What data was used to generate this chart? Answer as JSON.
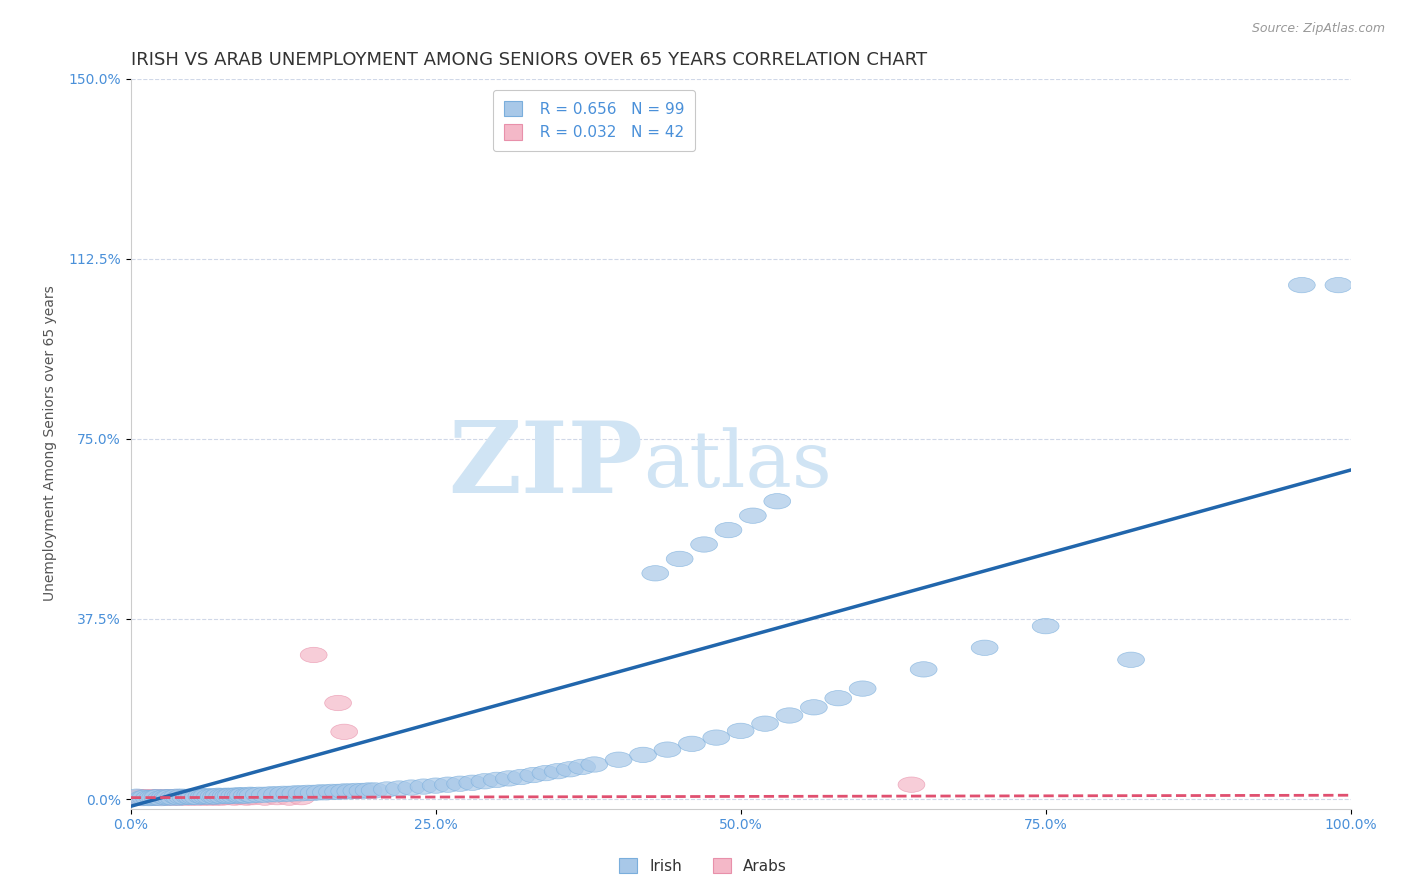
{
  "title": "IRISH VS ARAB UNEMPLOYMENT AMONG SENIORS OVER 65 YEARS CORRELATION CHART",
  "source": "Source: ZipAtlas.com",
  "ylabel": "Unemployment Among Seniors over 65 years",
  "xlim": [
    0.0,
    1.0
  ],
  "ylim": [
    -0.02,
    1.5
  ],
  "xticks": [
    0.0,
    0.25,
    0.5,
    0.75,
    1.0
  ],
  "xticklabels": [
    "0.0%",
    "25.0%",
    "50.0%",
    "75.0%",
    "100.0%"
  ],
  "yticks": [
    0.0,
    0.375,
    0.75,
    1.125,
    1.5
  ],
  "yticklabels": [
    "0.0%",
    "37.5%",
    "75.0%",
    "112.5%",
    "150.0%"
  ],
  "irish_color": "#a8c8e8",
  "arab_color": "#f4b8c8",
  "irish_edge_color": "#7aaedc",
  "arab_edge_color": "#e890aa",
  "irish_line_color": "#2166ac",
  "arab_line_color": "#e05070",
  "irish_R": 0.656,
  "irish_N": 99,
  "arab_R": 0.032,
  "arab_N": 42,
  "grid_color": "#d0d8e8",
  "background_color": "#ffffff",
  "title_fontsize": 13,
  "axis_label_fontsize": 10,
  "tick_label_color": "#4a90d9",
  "legend_fontsize": 11,
  "watermark_color": "#d0e4f4",
  "irish_x": [
    0.005,
    0.01,
    0.012,
    0.015,
    0.018,
    0.02,
    0.022,
    0.025,
    0.028,
    0.03,
    0.032,
    0.035,
    0.038,
    0.04,
    0.042,
    0.045,
    0.048,
    0.05,
    0.052,
    0.055,
    0.058,
    0.06,
    0.062,
    0.065,
    0.068,
    0.07,
    0.072,
    0.075,
    0.078,
    0.08,
    0.082,
    0.085,
    0.088,
    0.09,
    0.092,
    0.095,
    0.098,
    0.1,
    0.105,
    0.11,
    0.115,
    0.12,
    0.125,
    0.13,
    0.135,
    0.14,
    0.145,
    0.15,
    0.155,
    0.16,
    0.165,
    0.17,
    0.175,
    0.18,
    0.185,
    0.19,
    0.195,
    0.2,
    0.21,
    0.22,
    0.23,
    0.24,
    0.25,
    0.26,
    0.27,
    0.28,
    0.29,
    0.3,
    0.31,
    0.32,
    0.33,
    0.34,
    0.35,
    0.36,
    0.37,
    0.38,
    0.4,
    0.42,
    0.44,
    0.46,
    0.48,
    0.5,
    0.52,
    0.54,
    0.56,
    0.58,
    0.6,
    0.65,
    0.7,
    0.75,
    0.43,
    0.45,
    0.47,
    0.49,
    0.51,
    0.53,
    0.82,
    0.96,
    0.99
  ],
  "irish_y": [
    0.005,
    0.002,
    0.003,
    0.002,
    0.003,
    0.003,
    0.004,
    0.002,
    0.004,
    0.003,
    0.004,
    0.003,
    0.005,
    0.003,
    0.005,
    0.004,
    0.005,
    0.004,
    0.005,
    0.004,
    0.006,
    0.005,
    0.006,
    0.005,
    0.006,
    0.005,
    0.007,
    0.006,
    0.007,
    0.006,
    0.007,
    0.007,
    0.008,
    0.007,
    0.008,
    0.007,
    0.009,
    0.008,
    0.009,
    0.009,
    0.01,
    0.01,
    0.011,
    0.011,
    0.012,
    0.012,
    0.013,
    0.013,
    0.014,
    0.014,
    0.015,
    0.015,
    0.016,
    0.016,
    0.017,
    0.017,
    0.018,
    0.018,
    0.02,
    0.022,
    0.024,
    0.026,
    0.028,
    0.03,
    0.032,
    0.034,
    0.037,
    0.04,
    0.043,
    0.046,
    0.05,
    0.054,
    0.058,
    0.062,
    0.067,
    0.072,
    0.082,
    0.092,
    0.103,
    0.115,
    0.128,
    0.142,
    0.157,
    0.174,
    0.191,
    0.21,
    0.23,
    0.27,
    0.315,
    0.36,
    0.47,
    0.5,
    0.53,
    0.56,
    0.59,
    0.62,
    0.29,
    1.07,
    1.07
  ],
  "arab_x": [
    0.005,
    0.008,
    0.01,
    0.012,
    0.015,
    0.018,
    0.02,
    0.022,
    0.025,
    0.028,
    0.03,
    0.032,
    0.035,
    0.038,
    0.04,
    0.042,
    0.045,
    0.048,
    0.05,
    0.052,
    0.055,
    0.058,
    0.06,
    0.062,
    0.065,
    0.068,
    0.07,
    0.072,
    0.075,
    0.08,
    0.085,
    0.09,
    0.095,
    0.1,
    0.11,
    0.12,
    0.13,
    0.14,
    0.15,
    0.17,
    0.64,
    0.175
  ],
  "arab_y": [
    0.003,
    0.004,
    0.003,
    0.004,
    0.003,
    0.004,
    0.003,
    0.004,
    0.003,
    0.004,
    0.003,
    0.004,
    0.003,
    0.004,
    0.003,
    0.004,
    0.003,
    0.004,
    0.003,
    0.004,
    0.003,
    0.004,
    0.003,
    0.004,
    0.003,
    0.004,
    0.003,
    0.004,
    0.003,
    0.004,
    0.003,
    0.004,
    0.003,
    0.004,
    0.003,
    0.004,
    0.003,
    0.004,
    0.3,
    0.2,
    0.03,
    0.14
  ],
  "irish_trend_x": [
    0.0,
    1.0
  ],
  "irish_trend_y": [
    -0.015,
    0.685
  ],
  "arab_trend_x": [
    0.0,
    1.0
  ],
  "arab_trend_y": [
    0.003,
    0.008
  ]
}
